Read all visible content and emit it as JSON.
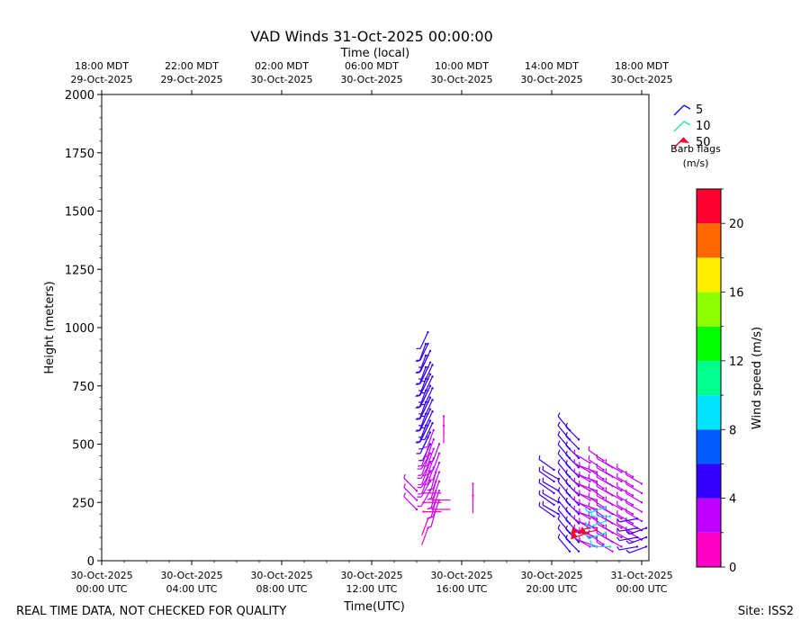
{
  "chart_data": {
    "type": "scatter",
    "title": "VAD Winds 31-Oct-2025 00:00:00",
    "top_axis_label": "Time (local)",
    "xlabel": "Time(UTC)",
    "ylabel": "Height (meters)",
    "ylim": [
      0,
      2000
    ],
    "xlim_hours_from_start": [
      0,
      24.4
    ],
    "yticks": [
      0,
      250,
      500,
      750,
      1000,
      1250,
      1500,
      1750,
      2000
    ],
    "bottom_ticks": [
      {
        "h": 0,
        "line1": "30-Oct-2025",
        "line2": "00:00 UTC"
      },
      {
        "h": 4,
        "line1": "30-Oct-2025",
        "line2": "04:00 UTC"
      },
      {
        "h": 8,
        "line1": "30-Oct-2025",
        "line2": "08:00 UTC"
      },
      {
        "h": 12,
        "line1": "30-Oct-2025",
        "line2": "12:00 UTC"
      },
      {
        "h": 16,
        "line1": "30-Oct-2025",
        "line2": "16:00 UTC"
      },
      {
        "h": 20,
        "line1": "30-Oct-2025",
        "line2": "20:00 UTC"
      },
      {
        "h": 24,
        "line1": "31-Oct-2025",
        "line2": "00:00 UTC"
      }
    ],
    "top_ticks": [
      {
        "h": 0,
        "line1": "18:00 MDT",
        "line2": "29-Oct-2025"
      },
      {
        "h": 4,
        "line1": "22:00 MDT",
        "line2": "29-Oct-2025"
      },
      {
        "h": 8,
        "line1": "02:00 MDT",
        "line2": "30-Oct-2025"
      },
      {
        "h": 12,
        "line1": "06:00 MDT",
        "line2": "30-Oct-2025"
      },
      {
        "h": 16,
        "line1": "10:00 MDT",
        "line2": "30-Oct-2025"
      },
      {
        "h": 20,
        "line1": "14:00 MDT",
        "line2": "30-Oct-2025"
      },
      {
        "h": 24,
        "line1": "18:00 MDT",
        "line2": "30-Oct-2025"
      }
    ],
    "barb_legend": {
      "items": [
        {
          "label": "5",
          "color": "#1a1adc"
        },
        {
          "label": "10",
          "color": "#2ee8a0"
        },
        {
          "label": "50",
          "color": "#ff0033"
        }
      ],
      "caption1": "Barb flags",
      "caption2": "(m/s)"
    },
    "colorbar": {
      "label": "Wind speed (m/s)",
      "range": [
        0,
        22
      ],
      "ticks": [
        0,
        4,
        8,
        12,
        16,
        20
      ],
      "bins": [
        {
          "from": 0,
          "to": 2,
          "color": "#ff00c8"
        },
        {
          "from": 2,
          "to": 4,
          "color": "#c000ff"
        },
        {
          "from": 4,
          "to": 6,
          "color": "#3300ff"
        },
        {
          "from": 6,
          "to": 8,
          "color": "#005cff"
        },
        {
          "from": 8,
          "to": 10,
          "color": "#00e5ff"
        },
        {
          "from": 10,
          "to": 12,
          "color": "#00ff8c"
        },
        {
          "from": 12,
          "to": 14,
          "color": "#00ff00"
        },
        {
          "from": 14,
          "to": 16,
          "color": "#8cff00"
        },
        {
          "from": 16,
          "to": 18,
          "color": "#ffee00"
        },
        {
          "from": 18,
          "to": 20,
          "color": "#ff6600"
        },
        {
          "from": 20,
          "to": 22,
          "color": "#ff0033"
        }
      ]
    },
    "series": [
      {
        "columns": [
          {
            "t": 14.4,
            "heights": [
              930,
              880,
              830,
              780,
              730,
              680,
              630,
              580
            ],
            "speed": 4.5,
            "dir": 200
          },
          {
            "t": 14.5,
            "heights": [
              980,
              930,
              880,
              830,
              780,
              730,
              680,
              630,
              580,
              530
            ],
            "speed": 4.8,
            "dir": 205
          },
          {
            "t": 14.6,
            "heights": [
              900,
              850,
              800,
              750,
              700,
              650,
              600,
              550,
              500
            ],
            "speed": 4.6,
            "dir": 205
          },
          {
            "t": 14.7,
            "heights": [
              840,
              790,
              740,
              690,
              640,
              590
            ],
            "speed": 4.2,
            "dir": 205
          },
          {
            "t": 14.5,
            "heights": [
              480,
              440,
              400,
              360
            ],
            "speed": 2.8,
            "dir": 200
          },
          {
            "t": 14.6,
            "heights": [
              460,
              420,
              380,
              340,
              300
            ],
            "speed": 3.0,
            "dir": 210
          },
          {
            "t": 14.75,
            "heights": [
              560,
              520,
              480,
              440,
              400
            ],
            "speed": 3.2,
            "dir": 200
          },
          {
            "t": 14.85,
            "heights": [
              380,
              340,
              300,
              260,
              220
            ],
            "speed": 3.0,
            "dir": 195
          },
          {
            "t": 15.0,
            "heights": [
              500,
              460,
              420,
              380,
              340,
              300,
              260
            ],
            "speed": 2.6,
            "dir": 200
          },
          {
            "t": 15.2,
            "heights": [
              620,
              580
            ],
            "speed": 1.4,
            "dir": 180
          },
          {
            "t": 14.0,
            "heights": [
              300,
              260,
              220
            ],
            "speed": 2.8,
            "dir": 315
          },
          {
            "t": 14.3,
            "heights": [
              290,
              250,
              210
            ],
            "speed": 1.8,
            "dir": 90
          },
          {
            "t": 14.7,
            "heights": [
              260,
              220
            ],
            "speed": 1.5,
            "dir": 90
          },
          {
            "t": 14.5,
            "heights": [
              180,
              140
            ],
            "speed": 1.2,
            "dir": 200
          },
          {
            "t": 16.5,
            "heights": [
              330,
              280
            ],
            "speed": 1.2,
            "dir": 180
          }
        ]
      },
      {
        "columns": [
          {
            "t": 20.1,
            "heights": [
              390,
              340,
              290,
              240,
              190
            ],
            "speed": 5.0,
            "dir": 305
          },
          {
            "t": 20.3,
            "heights": [
              350,
              300,
              250,
              200
            ],
            "speed": 4.8,
            "dir": 300
          },
          {
            "t": 20.8,
            "heights": [
              560,
              520,
              480,
              440,
              400,
              360,
              320,
              280,
              240,
              200,
              160,
              120,
              80,
              40
            ],
            "speed": 5.0,
            "dir": 320
          },
          {
            "t": 21.2,
            "heights": [
              520,
              480,
              440,
              400,
              360,
              320,
              280,
              240,
              200,
              160,
              120,
              80,
              40
            ],
            "speed": 4.6,
            "dir": 315
          },
          {
            "t": 21.7,
            "heights": [
              420,
              380,
              340,
              300,
              260,
              220,
              180,
              140,
              100,
              60
            ],
            "speed": 3.2,
            "dir": 300
          },
          {
            "t": 22.0,
            "heights": [
              380,
              340,
              300,
              260,
              220,
              180,
              140,
              100,
              60
            ],
            "speed": 3.0,
            "dir": 290
          },
          {
            "t": 22.3,
            "heights": [
              430,
              390,
              350,
              310,
              270,
              230,
              190,
              150,
              110,
              70
            ],
            "speed": 3.4,
            "dir": 305
          },
          {
            "t": 22.7,
            "heights": [
              400,
              360,
              320,
              280,
              240,
              200,
              160,
              120,
              80,
              40
            ],
            "speed": 3.2,
            "dir": 300
          },
          {
            "t": 23.1,
            "heights": [
              380,
              340,
              300,
              260,
              220,
              180,
              140,
              100,
              60
            ],
            "speed": 3.6,
            "dir": 300
          },
          {
            "t": 23.6,
            "heights": [
              360,
              320,
              280,
              240,
              200,
              160,
              120,
              80
            ],
            "speed": 3.4,
            "dir": 300
          },
          {
            "t": 24.0,
            "heights": [
              330,
              290,
              250,
              210,
              170,
              130,
              90
            ],
            "speed": 3.2,
            "dir": 300
          },
          {
            "t": 23.8,
            "heights": [
              180,
              140,
              100,
              60
            ],
            "speed": 5.0,
            "dir": 260
          },
          {
            "t": 24.2,
            "heights": [
              140,
              100,
              60
            ],
            "speed": 4.8,
            "dir": 250
          },
          {
            "t": 22.4,
            "heights": [
              230,
              170,
              120
            ],
            "speed": 8.5,
            "dir": 250
          },
          {
            "t": 22.6,
            "heights": [
              190,
              60
            ],
            "speed": 9.0,
            "dir": 270
          },
          {
            "t": 21.6,
            "heights": [
              140,
              120
            ],
            "speed": 21.0,
            "dir": 250
          },
          {
            "t": 22.0,
            "heights": [
              130
            ],
            "speed": 20.5,
            "dir": 260
          }
        ]
      }
    ]
  },
  "footer": {
    "left": "REAL TIME DATA, NOT CHECKED FOR QUALITY",
    "right": "Site: ISS2"
  }
}
